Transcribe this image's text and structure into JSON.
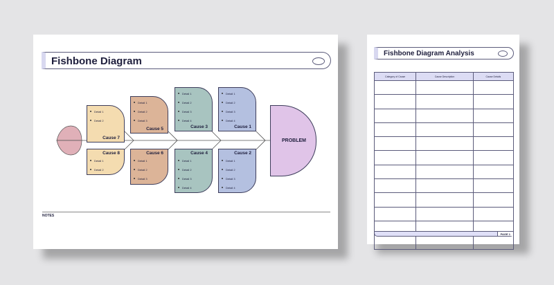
{
  "diagram": {
    "title": "Fishbone Diagram",
    "problem": "PROBLEM",
    "notes": "NOTES",
    "causes": [
      {
        "label": "Cause 1",
        "details": [
          "Detail 1",
          "Detail 2",
          "Detail 3",
          "Detail 4"
        ],
        "color": "#b4c0e0"
      },
      {
        "label": "Cause 2",
        "details": [
          "Detail 1",
          "Detail 2",
          "Detail 3",
          "Detail 4"
        ],
        "color": "#b4c0e0"
      },
      {
        "label": "Cause 3",
        "details": [
          "Detail 1",
          "Detail 2",
          "Detail 3",
          "Detail 4"
        ],
        "color": "#a8c4c0"
      },
      {
        "label": "Cause 4",
        "details": [
          "Detail 1",
          "Detail 2",
          "Detail 3",
          "Detail 4"
        ],
        "color": "#a8c4c0"
      },
      {
        "label": "Cause 5",
        "details": [
          "Detail 1",
          "Detail 2",
          "Detail 3"
        ],
        "color": "#dcb498"
      },
      {
        "label": "Cause 6",
        "details": [
          "Detail 1",
          "Detail 2",
          "Detail 3"
        ],
        "color": "#dcb498"
      },
      {
        "label": "Cause 7",
        "details": [
          "Detail 1",
          "Detail 2"
        ],
        "color": "#f4dcb0"
      },
      {
        "label": "Cause 8",
        "details": [
          "Detail 1",
          "Detail 2"
        ],
        "color": "#f4dcb0"
      }
    ],
    "problem_color": "#e0c4e8",
    "tail_color": "#e0b0b8"
  },
  "analysis": {
    "title": "Fishbone Diagram Analysis",
    "columns": [
      "Category of Cause",
      "Cause Description",
      "Cause Details"
    ],
    "page": "PAGE 1"
  }
}
